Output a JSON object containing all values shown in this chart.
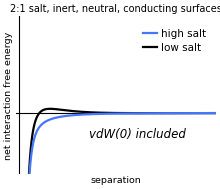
{
  "title": "2:1 salt, inert, neutral, conducting surfaces",
  "ylabel": "net interaction free energy",
  "xlabel": "separation",
  "legend_high": "high salt",
  "legend_low": "low salt",
  "annotation": "vdW(0) included",
  "high_salt_color": "#4477ff",
  "low_salt_color": "#000000",
  "bg_color": "#ffffff",
  "title_fontsize": 7.0,
  "label_fontsize": 6.8,
  "legend_fontsize": 7.5,
  "annot_fontsize": 8.5,
  "xmin": 0.0,
  "xmax": 10.0,
  "ymin": -3.5,
  "ymax": 5.5
}
